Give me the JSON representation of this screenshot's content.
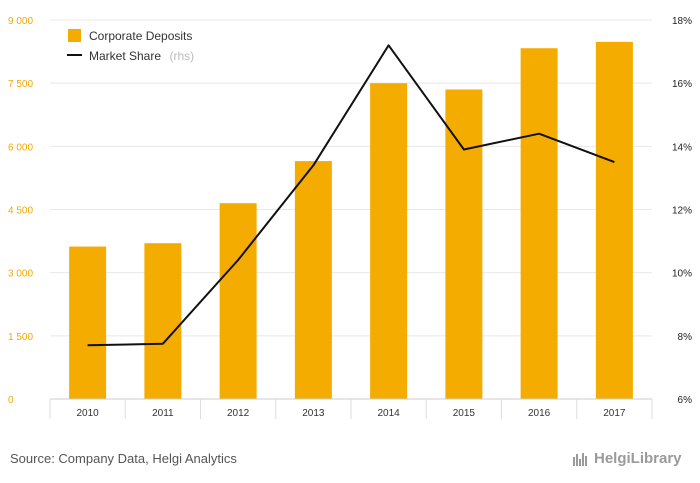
{
  "chart_data": {
    "type": "bar",
    "categories": [
      "2010",
      "2011",
      "2012",
      "2013",
      "2014",
      "2015",
      "2016",
      "2017"
    ],
    "series": [
      {
        "name": "Corporate Deposits",
        "type": "bar",
        "axis": "left",
        "values": [
          3620,
          3700,
          4650,
          5650,
          7500,
          7350,
          8330,
          8480
        ]
      },
      {
        "name": "Market Share",
        "type": "line",
        "axis": "right",
        "values": [
          7.7,
          7.75,
          10.4,
          13.4,
          17.2,
          13.9,
          14.4,
          13.5
        ]
      }
    ],
    "ylim_left": [
      0,
      9000
    ],
    "yticks_left": [
      "0",
      "1 500",
      "3 000",
      "4 500",
      "6 000",
      "7 500",
      "9 000"
    ],
    "ylim_right": [
      6,
      18
    ],
    "yticks_right": [
      "6%",
      "8%",
      "10%",
      "12%",
      "14%",
      "16%",
      "18%"
    ],
    "legend": {
      "position": "top-left",
      "items": [
        {
          "label": "Corporate Deposits",
          "suffix": ""
        },
        {
          "label": "Market Share",
          "suffix": "(rhs)"
        }
      ]
    },
    "colors": {
      "bar": "#f5ac00",
      "line": "#111111",
      "left_axis_text": "#f5a800",
      "grid": "#e8e8e8"
    },
    "grid": true
  },
  "footer": {
    "source": "Source: Company Data, Helgi Analytics",
    "brand": "HelgiLibrary",
    "brand_icon": "helgi-library-logo-icon"
  }
}
